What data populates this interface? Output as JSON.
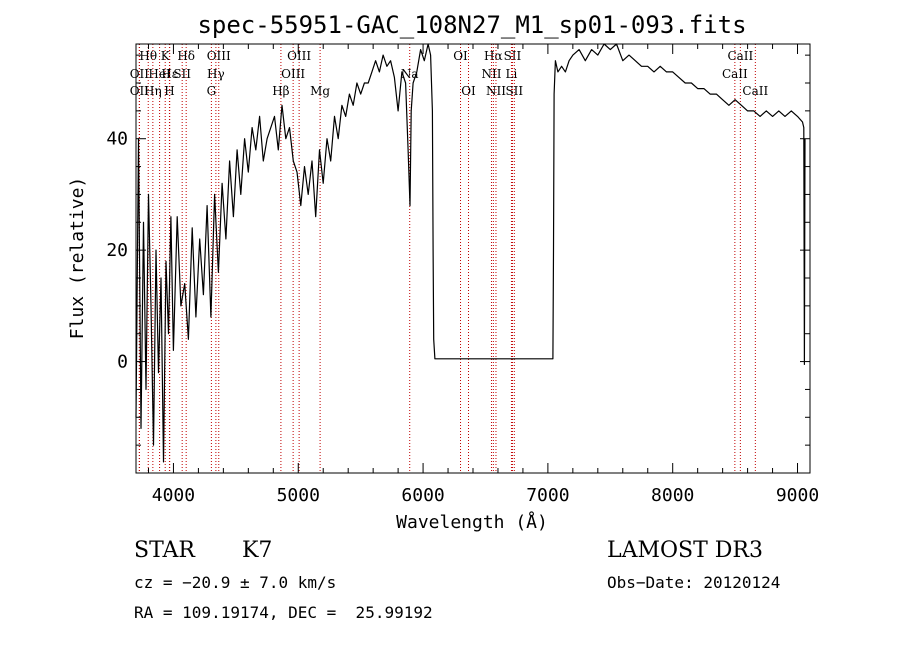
{
  "chart_data": {
    "type": "line",
    "title": "spec-55951-GAC_108N27_M1_sp01-093.fits",
    "xlabel": "Wavelength (Å)",
    "ylabel": "Flux (relative)",
    "xlim": [
      3700,
      9100
    ],
    "ylim": [
      -20,
      57
    ],
    "x_ticks": [
      4000,
      5000,
      6000,
      7000,
      8000,
      9000
    ],
    "y_ticks": [
      0,
      20,
      40
    ],
    "series": [
      {
        "x": [
          3700,
          3720,
          3740,
          3760,
          3780,
          3800,
          3820,
          3840,
          3860,
          3880,
          3900,
          3920,
          3940,
          3960,
          3980,
          4000,
          4030,
          4060,
          4090,
          4120,
          4150,
          4180,
          4210,
          4240,
          4270,
          4300,
          4330,
          4360,
          4390,
          4420,
          4450,
          4480,
          4510,
          4540,
          4570,
          4600,
          4630,
          4660,
          4690,
          4720,
          4750,
          4780,
          4810,
          4840,
          4870,
          4900,
          4930,
          4960,
          4990,
          5020,
          5050,
          5080,
          5110,
          5140,
          5170,
          5200,
          5230,
          5260,
          5290,
          5320,
          5350,
          5380,
          5410,
          5440,
          5470,
          5500,
          5530,
          5560,
          5590,
          5620,
          5650,
          5680,
          5710,
          5740,
          5770,
          5800,
          5830,
          5860,
          5880,
          5895,
          5905,
          5920,
          5950,
          5980,
          6010,
          6040,
          6060,
          6075,
          6080,
          6085,
          6095,
          7040,
          7045,
          7050,
          7060,
          7080,
          7110,
          7140,
          7170,
          7200,
          7250,
          7300,
          7350,
          7400,
          7450,
          7500,
          7550,
          7600,
          7650,
          7700,
          7750,
          7800,
          7850,
          7900,
          7950,
          8000,
          8050,
          8100,
          8150,
          8200,
          8250,
          8300,
          8350,
          8400,
          8450,
          8500,
          8550,
          8600,
          8650,
          8700,
          8750,
          8800,
          8850,
          8900,
          8950,
          9000,
          9040,
          9050,
          9055,
          9060
        ],
        "y": [
          -10,
          40,
          -12,
          25,
          -5,
          30,
          10,
          -15,
          20,
          -2,
          15,
          -18,
          18,
          5,
          26,
          2,
          26,
          10,
          14,
          4,
          24,
          8,
          22,
          12,
          28,
          8,
          30,
          16,
          32,
          22,
          36,
          26,
          38,
          30,
          40,
          34,
          42,
          38,
          44,
          36,
          40,
          42,
          44,
          38,
          46,
          40,
          42,
          36,
          34,
          28,
          35,
          30,
          36,
          26,
          38,
          32,
          40,
          36,
          44,
          40,
          46,
          44,
          48,
          46,
          50,
          48,
          50,
          50,
          52,
          54,
          52,
          55,
          53,
          54,
          51,
          45,
          52,
          50,
          38,
          28,
          45,
          50,
          52,
          56,
          54,
          57,
          55,
          45,
          20,
          4,
          0.5,
          0.5,
          20,
          48,
          54,
          52,
          53,
          52,
          54,
          55,
          56,
          54,
          56,
          55,
          57,
          56,
          57,
          54,
          55,
          54,
          53,
          53,
          52,
          53,
          52,
          52,
          51,
          50,
          50,
          49,
          49,
          48,
          48,
          47,
          46,
          47,
          46,
          45,
          45,
          44,
          45,
          44,
          45,
          44,
          45,
          44,
          43,
          42,
          -0.5,
          40
        ],
        "style": "black line"
      }
    ],
    "line_markers": [
      {
        "label": "Hθ",
        "x": 3798,
        "row": 0
      },
      {
        "label": "OII",
        "x": 3727,
        "row": 1
      },
      {
        "label": "OII",
        "x": 3727,
        "row": 2
      },
      {
        "label": "K",
        "x": 3934,
        "row": 0
      },
      {
        "label": "Hε",
        "x": 3970,
        "row": 1
      },
      {
        "label": "HeI",
        "x": 3889,
        "row": 1
      },
      {
        "label": "Hη",
        "x": 3835,
        "row": 2
      },
      {
        "label": "H",
        "x": 3968,
        "row": 2
      },
      {
        "label": "SII",
        "x": 4070,
        "row": 1
      },
      {
        "label": "Hδ",
        "x": 4102,
        "row": 0
      },
      {
        "label": "OIII",
        "x": 4363,
        "row": 0
      },
      {
        "label": "Hγ",
        "x": 4340,
        "row": 1
      },
      {
        "label": "G",
        "x": 4304,
        "row": 2
      },
      {
        "label": "Hβ",
        "x": 4861,
        "row": 2
      },
      {
        "label": "OIII",
        "x": 5007,
        "row": 0
      },
      {
        "label": "OIII",
        "x": 4959,
        "row": 1
      },
      {
        "label": "Mg",
        "x": 5175,
        "row": 2
      },
      {
        "label": "Na",
        "x": 5893,
        "row": 1
      },
      {
        "label": "OI",
        "x": 6300,
        "row": 0
      },
      {
        "label": "OI",
        "x": 6364,
        "row": 2
      },
      {
        "label": "Hα",
        "x": 6563,
        "row": 0
      },
      {
        "label": "SII",
        "x": 6716,
        "row": 0
      },
      {
        "label": "NII",
        "x": 6548,
        "row": 1
      },
      {
        "label": "Li",
        "x": 6708,
        "row": 1
      },
      {
        "label": "NII",
        "x": 6584,
        "row": 2
      },
      {
        "label": "SII",
        "x": 6731,
        "row": 2
      },
      {
        "label": "CaII",
        "x": 8542,
        "row": 0
      },
      {
        "label": "CaII",
        "x": 8498,
        "row": 1
      },
      {
        "label": "CaII",
        "x": 8662,
        "row": 2
      }
    ]
  },
  "info": {
    "class": "STAR",
    "subclass": "K7",
    "survey": "LAMOST DR3",
    "cz": "cz = −20.9 ± 7.0 km/s",
    "obs_date": "Obs−Date: 20120124",
    "coords": "RA = 109.19174, DEC =  25.99192"
  }
}
